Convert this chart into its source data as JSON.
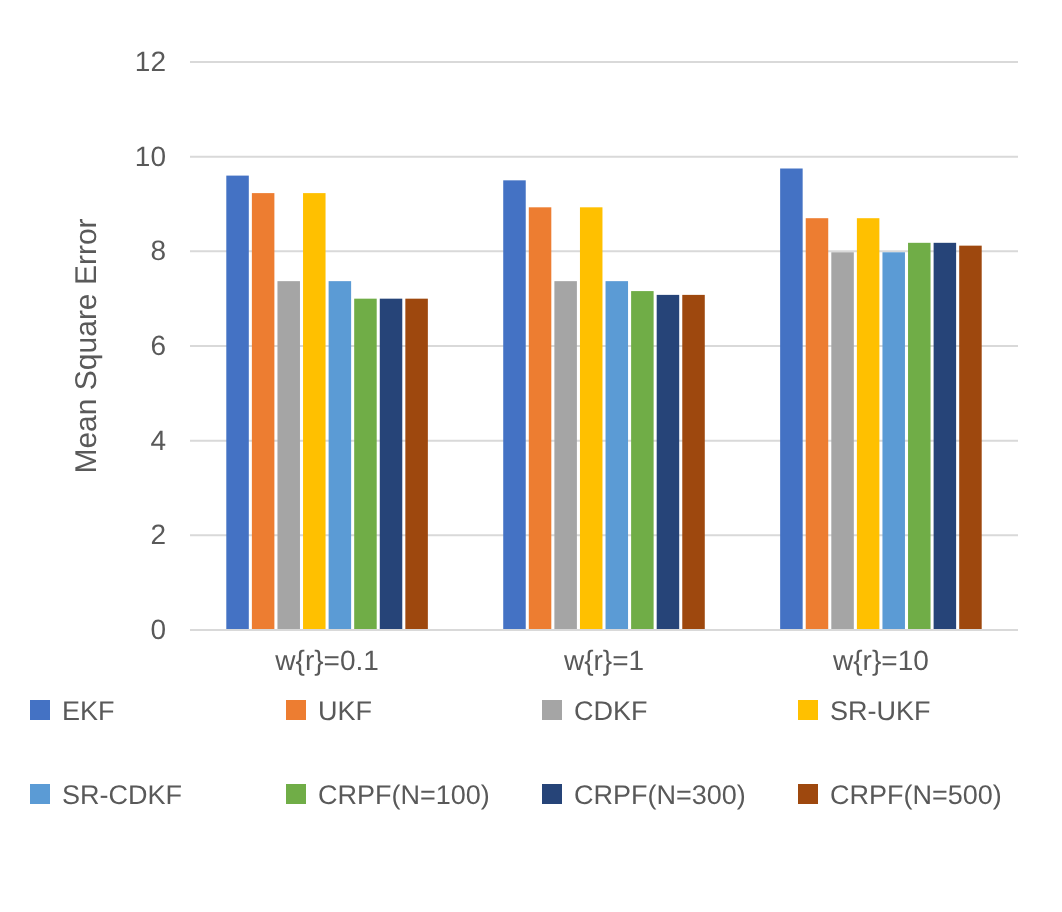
{
  "chart_data": {
    "type": "bar",
    "ylabel": "Mean Square Error",
    "categories": [
      "w{r}=0.1",
      "w{r}=1",
      "w{r}=10"
    ],
    "series": [
      {
        "name": "EKF",
        "color": "#4472c4",
        "values": [
          9.6,
          9.5,
          9.75
        ]
      },
      {
        "name": "UKF",
        "color": "#ed7d31",
        "values": [
          9.23,
          8.93,
          8.7
        ]
      },
      {
        "name": "CDKF",
        "color": "#a5a5a5",
        "values": [
          7.37,
          7.37,
          7.98
        ]
      },
      {
        "name": "SR-UKF",
        "color": "#ffc000",
        "values": [
          9.23,
          8.93,
          8.7
        ]
      },
      {
        "name": "SR-CDKF",
        "color": "#5b9bd5",
        "values": [
          7.37,
          7.37,
          7.98
        ]
      },
      {
        "name": "CRPF(N=100)",
        "color": "#70ad47",
        "values": [
          7.0,
          7.16,
          8.18
        ]
      },
      {
        "name": "CRPF(N=300)",
        "color": "#264478",
        "values": [
          7.0,
          7.08,
          8.18
        ]
      },
      {
        "name": "CRPF(N=500)",
        "color": "#9e480e",
        "values": [
          7.0,
          7.08,
          8.12
        ]
      }
    ],
    "ylim": [
      0,
      12
    ],
    "yticks": [
      0,
      2,
      4,
      6,
      8,
      10,
      12
    ],
    "grid": "y",
    "legend": "bottom"
  }
}
